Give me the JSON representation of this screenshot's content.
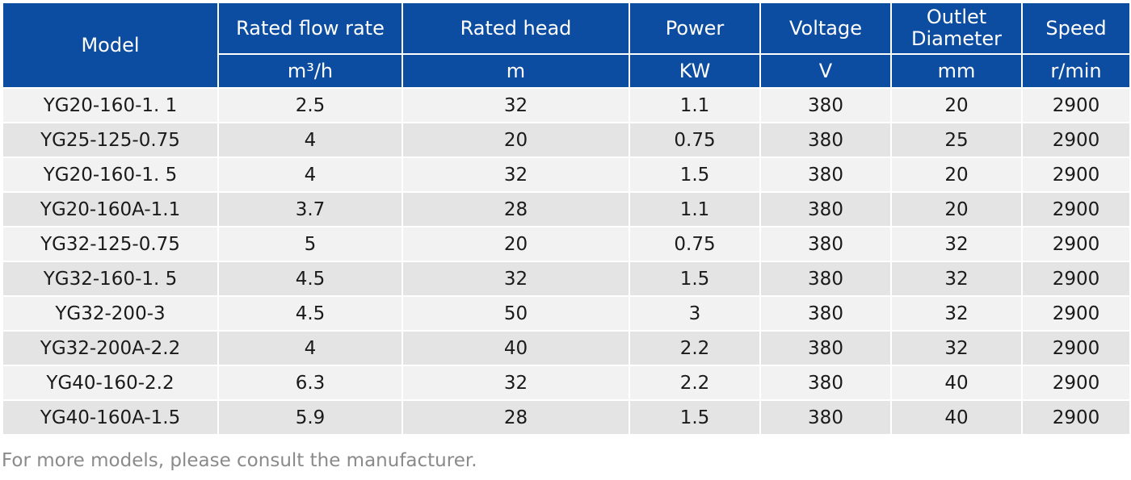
{
  "table": {
    "columns": [
      {
        "label": "Model",
        "unit": ""
      },
      {
        "label": "Rated flow rate",
        "unit": "m³/h"
      },
      {
        "label": "Rated head",
        "unit": "m"
      },
      {
        "label": "Power",
        "unit": "KW"
      },
      {
        "label": "Voltage",
        "unit": "V"
      },
      {
        "label": "Outlet\nDiameter",
        "unit": "mm"
      },
      {
        "label": "Speed",
        "unit": "r/min"
      }
    ],
    "rows": [
      [
        "YG20-160-1. 1",
        "2.5",
        "32",
        "1.1",
        "380",
        "20",
        "2900"
      ],
      [
        "YG25-125-0.75",
        "4",
        "20",
        "0.75",
        "380",
        "25",
        "2900"
      ],
      [
        "YG20-160-1. 5",
        "4",
        "32",
        "1.5",
        "380",
        "20",
        "2900"
      ],
      [
        "YG20-160A-1.1",
        "3.7",
        "28",
        "1.1",
        "380",
        "20",
        "2900"
      ],
      [
        "YG32-125-0.75",
        "5",
        "20",
        "0.75",
        "380",
        "32",
        "2900"
      ],
      [
        "YG32-160-1. 5",
        "4.5",
        "32",
        "1.5",
        "380",
        "32",
        "2900"
      ],
      [
        "YG32-200-3",
        "4.5",
        "50",
        "3",
        "380",
        "32",
        "2900"
      ],
      [
        "YG32-200A-2.2",
        "4",
        "40",
        "2.2",
        "380",
        "32",
        "2900"
      ],
      [
        "YG40-160-2.2",
        "6.3",
        "32",
        "2.2",
        "380",
        "40",
        "2900"
      ],
      [
        "YG40-160A-1.5",
        "5.9",
        "28",
        "1.5",
        "380",
        "40",
        "2900"
      ]
    ]
  },
  "footnote": "For more models, please consult the manufacturer.",
  "colors": {
    "header_bg": "#0d4da1",
    "row_light": "#f2f2f2",
    "row_dark": "#e4e4e4",
    "footnote_text": "#8a8a8a"
  }
}
